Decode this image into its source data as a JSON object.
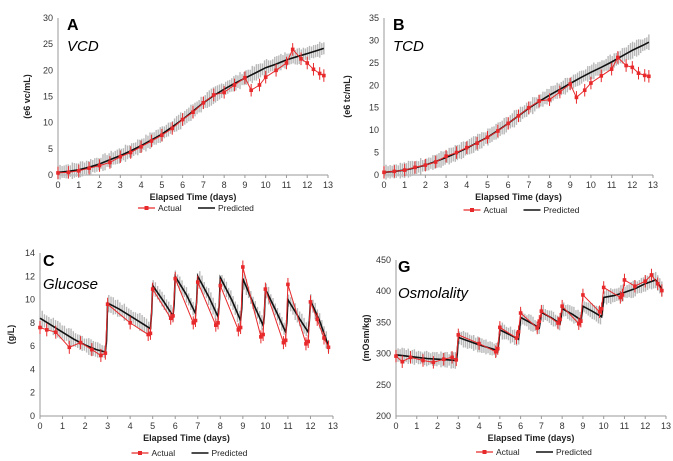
{
  "chart_data": [
    {
      "type": "line",
      "letter": "A",
      "name": "VCD",
      "xlabel": "Elapsed Time (days)",
      "ylabel": "(e6 vc/mL)",
      "xlim": [
        0,
        13
      ],
      "ylim": [
        0,
        30
      ],
      "xticks": [
        0,
        1,
        2,
        3,
        4,
        5,
        6,
        7,
        8,
        9,
        10,
        11,
        12,
        13
      ],
      "yticks": [
        0,
        5,
        10,
        15,
        20,
        25,
        30
      ],
      "legend": {
        "actual": "Actual",
        "predicted": "Predicted",
        "position": "bottom"
      },
      "colors": {
        "actual": "#e8292b",
        "predicted": "#111111",
        "band": "#b5b5b5"
      },
      "series": [
        {
          "name": "Actual",
          "x": [
            0,
            0.5,
            1,
            1.5,
            2,
            2.5,
            3,
            3.5,
            4,
            4.5,
            5,
            5.5,
            6,
            6.5,
            7,
            7.5,
            8,
            8.5,
            9,
            9.3,
            9.7,
            10,
            10.5,
            11,
            11.3,
            11.7,
            12,
            12.3,
            12.6,
            12.8
          ],
          "y": [
            0.4,
            0.5,
            0.8,
            1.3,
            1.8,
            2.4,
            3.5,
            4.3,
            5.4,
            6.5,
            7.6,
            8.9,
            10.6,
            12,
            13.8,
            15.3,
            15.8,
            17.2,
            18.6,
            16.2,
            17.2,
            18.7,
            20,
            21.4,
            24,
            22.2,
            21.4,
            20.2,
            19.4,
            19
          ]
        },
        {
          "name": "Predicted",
          "x": [
            0,
            0.5,
            1,
            1.5,
            2,
            2.5,
            3,
            3.5,
            4,
            4.5,
            5,
            5.5,
            6,
            6.5,
            7,
            7.5,
            8,
            8.5,
            9,
            9.5,
            10,
            10.5,
            11,
            11.5,
            12,
            12.5,
            12.8
          ],
          "y": [
            0.5,
            0.7,
            1.0,
            1.5,
            2.1,
            2.9,
            3.7,
            4.6,
            5.6,
            6.7,
            7.8,
            9.2,
            10.6,
            12.2,
            13.8,
            15.2,
            16.4,
            17.5,
            18.5,
            19.5,
            20.5,
            21.2,
            22.0,
            22.6,
            23.2,
            23.8,
            24.2
          ]
        }
      ]
    },
    {
      "type": "line",
      "letter": "B",
      "name": "TCD",
      "xlabel": "Elapsed Time (days)",
      "ylabel": "(e6 tc/mL)",
      "xlim": [
        0,
        13
      ],
      "ylim": [
        0,
        35
      ],
      "xticks": [
        0,
        1,
        2,
        3,
        4,
        5,
        6,
        7,
        8,
        9,
        10,
        11,
        12,
        13
      ],
      "yticks": [
        0,
        5,
        10,
        15,
        20,
        25,
        30,
        35
      ],
      "legend": {
        "actual": "Actual",
        "predicted": "Predicted",
        "position": "bottom"
      },
      "colors": {
        "actual": "#e8292b",
        "predicted": "#111111",
        "band": "#b5b5b5"
      },
      "series": [
        {
          "name": "Actual",
          "x": [
            0,
            0.5,
            1,
            1.5,
            2,
            2.5,
            3,
            3.5,
            4,
            4.5,
            5,
            5.5,
            6,
            6.5,
            7,
            7.5,
            8,
            8.5,
            9,
            9.3,
            9.7,
            10,
            10.5,
            11,
            11.3,
            11.7,
            12,
            12.3,
            12.6,
            12.8
          ],
          "y": [
            0.6,
            0.8,
            1.1,
            1.7,
            2.2,
            2.9,
            4.2,
            5.0,
            6.1,
            7.1,
            8.4,
            9.8,
            11.5,
            13.2,
            15.0,
            16.5,
            16.8,
            18.5,
            20.3,
            17.3,
            18.9,
            20.5,
            22.1,
            23.6,
            26.2,
            24.4,
            24.0,
            22.7,
            22.2,
            22.0
          ]
        },
        {
          "name": "Predicted",
          "x": [
            0,
            0.5,
            1,
            1.5,
            2,
            2.5,
            3,
            3.5,
            4,
            4.5,
            5,
            5.5,
            6,
            6.5,
            7,
            7.5,
            8,
            8.5,
            9,
            9.5,
            10,
            10.5,
            11,
            11.5,
            12,
            12.5,
            12.8
          ],
          "y": [
            0.6,
            0.8,
            1.1,
            1.6,
            2.2,
            3.0,
            3.9,
            4.9,
            6.0,
            7.2,
            8.4,
            9.9,
            11.5,
            13.2,
            14.9,
            16.4,
            17.8,
            19.1,
            20.4,
            21.7,
            22.9,
            24.0,
            25.2,
            26.5,
            27.8,
            28.9,
            29.6
          ]
        }
      ]
    },
    {
      "type": "line",
      "letter": "C",
      "name": "Glucose",
      "xlabel": "Elapsed Time (days)",
      "ylabel": "(g/L)",
      "xlim": [
        0,
        13
      ],
      "ylim": [
        0,
        14
      ],
      "xticks": [
        0,
        1,
        2,
        3,
        4,
        5,
        6,
        7,
        8,
        9,
        10,
        11,
        12,
        13
      ],
      "yticks": [
        0,
        2,
        4,
        6,
        8,
        10,
        12,
        14
      ],
      "legend": {
        "actual": "Actual",
        "predicted": "Predicted",
        "position": "bottom"
      },
      "colors": {
        "actual": "#e8292b",
        "predicted": "#111111",
        "band": "#b5b5b5"
      },
      "series": [
        {
          "name": "Actual",
          "x": [
            0,
            0.3,
            0.7,
            1.3,
            1.8,
            2.3,
            2.7,
            2.9,
            3,
            4,
            4.8,
            4.9,
            5,
            5.8,
            5.9,
            6,
            6.8,
            6.9,
            7,
            7.8,
            7.9,
            8,
            8.8,
            8.9,
            9,
            9.8,
            9.9,
            10,
            10.8,
            10.9,
            11,
            11.8,
            11.9,
            12,
            12.3,
            12.6,
            12.8
          ],
          "y": [
            7.6,
            7.4,
            7.2,
            5.9,
            6.3,
            5.7,
            5.2,
            5.4,
            9.6,
            8.0,
            7.0,
            7.1,
            10.9,
            8.4,
            8.6,
            11.8,
            8.0,
            8.2,
            11.5,
            7.8,
            8.0,
            11.2,
            7.4,
            7.6,
            12.8,
            6.8,
            7.0,
            10.9,
            6.3,
            6.5,
            11.3,
            6.2,
            6.4,
            9.8,
            8.3,
            6.7,
            5.9
          ]
        },
        {
          "name": "Predicted",
          "x": [
            0,
            0.5,
            1,
            1.5,
            2,
            2.5,
            2.9,
            2.95,
            3,
            3.5,
            4,
            4.5,
            4.9,
            4.95,
            5,
            5.5,
            5.9,
            5.95,
            6,
            6.5,
            6.9,
            6.95,
            7,
            7.5,
            7.9,
            7.95,
            8,
            8.5,
            8.9,
            8.95,
            9,
            9.5,
            9.9,
            9.95,
            10,
            10.5,
            10.9,
            10.95,
            11,
            11.5,
            11.9,
            11.95,
            12,
            12.4,
            12.8
          ],
          "y": [
            8.4,
            7.8,
            7.2,
            6.6,
            6.1,
            5.7,
            5.5,
            6.5,
            9.7,
            9.2,
            8.6,
            8.0,
            7.5,
            8.8,
            11.2,
            9.8,
            8.6,
            9.6,
            12.0,
            10.4,
            8.8,
            9.8,
            12.0,
            10.2,
            8.5,
            9.5,
            11.9,
            10.0,
            8.2,
            9.2,
            11.8,
            9.5,
            7.8,
            8.6,
            10.9,
            8.9,
            7.2,
            8.0,
            10.0,
            8.4,
            7.2,
            8.1,
            9.9,
            8.2,
            6.0
          ]
        }
      ]
    },
    {
      "type": "line",
      "letter": "G",
      "name": "Osmolality",
      "xlabel": "Elapsed Time (days)",
      "ylabel": "(mOsm/kg)",
      "xlim": [
        0,
        13
      ],
      "ylim": [
        200,
        450
      ],
      "xticks": [
        0,
        1,
        2,
        3,
        4,
        5,
        6,
        7,
        8,
        9,
        10,
        11,
        12,
        13
      ],
      "yticks": [
        200,
        250,
        300,
        350,
        400,
        450
      ],
      "legend": {
        "actual": "Actual",
        "predicted": "Predicted",
        "position": "bottom"
      },
      "colors": {
        "actual": "#e8292b",
        "predicted": "#111111",
        "band": "#b5b5b5"
      },
      "series": [
        {
          "name": "Actual",
          "x": [
            0,
            0.3,
            0.7,
            1.3,
            1.8,
            2.3,
            2.7,
            2.9,
            3,
            4,
            4.8,
            4.9,
            5,
            5.8,
            5.9,
            6,
            6.8,
            6.9,
            7,
            7.8,
            7.9,
            8,
            8.8,
            8.9,
            9,
            9.8,
            9.9,
            10,
            10.8,
            10.9,
            11,
            11.5,
            12,
            12.3,
            12.6,
            12.8
          ],
          "y": [
            296,
            287,
            294,
            289,
            286,
            291,
            294,
            290,
            330,
            316,
            303,
            308,
            342,
            325,
            335,
            365,
            341,
            352,
            368,
            349,
            355,
            376,
            348,
            352,
            394,
            367,
            372,
            406,
            390,
            394,
            418,
            408,
            416,
            426,
            412,
            401
          ]
        },
        {
          "name": "Predicted",
          "x": [
            0,
            0.5,
            1,
            1.5,
            2,
            2.5,
            2.9,
            2.95,
            3,
            3.5,
            4,
            4.5,
            4.9,
            4.95,
            5,
            5.5,
            5.9,
            5.95,
            6,
            6.5,
            6.9,
            6.95,
            7,
            7.5,
            7.9,
            7.95,
            8,
            8.5,
            8.9,
            8.95,
            9,
            9.5,
            9.9,
            9.95,
            10,
            10.5,
            11,
            11.5,
            12,
            12.5,
            12.8
          ],
          "y": [
            298,
            296,
            294,
            292,
            291,
            290,
            289,
            300,
            326,
            320,
            314,
            309,
            305,
            318,
            338,
            330,
            323,
            338,
            358,
            349,
            341,
            352,
            366,
            357,
            348,
            358,
            372,
            363,
            354,
            364,
            376,
            367,
            359,
            372,
            390,
            393,
            398,
            404,
            412,
            418,
            404
          ]
        }
      ]
    }
  ]
}
